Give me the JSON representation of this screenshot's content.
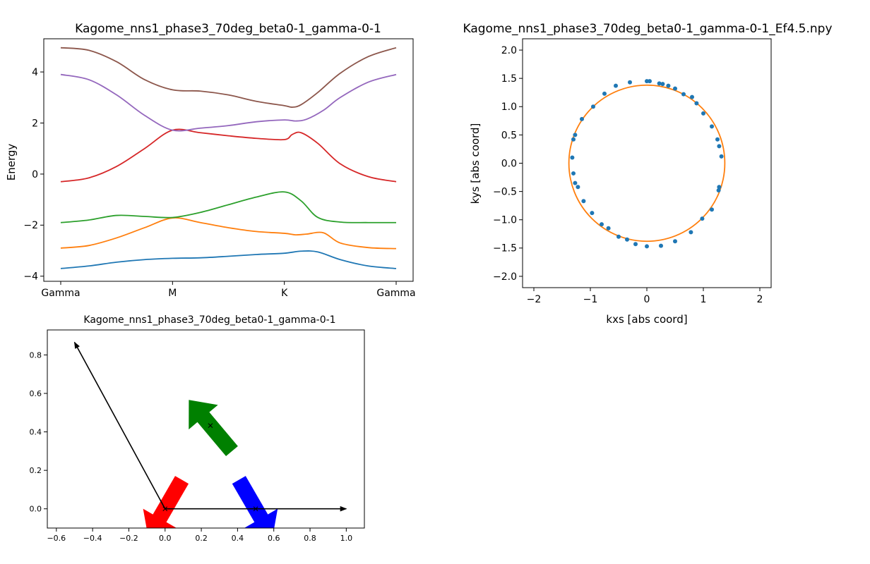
{
  "chart_data": [
    {
      "type": "line",
      "title": "Kagome_nns1_phase3_70deg_beta0-1_gamma-0-1",
      "xlabel": "",
      "ylabel": "Energy",
      "xlim": [
        0,
        3
      ],
      "ylim": [
        -4.2,
        5.3
      ],
      "xticks": [
        0,
        1,
        2,
        3
      ],
      "xtick_labels": [
        "Gamma",
        "M",
        "K",
        "Gamma"
      ],
      "yticks": [
        -4,
        -2,
        0,
        2,
        4
      ],
      "ytick_labels": [
        "−4",
        "−2",
        "0",
        "2",
        "4"
      ],
      "grid": false,
      "series": [
        {
          "color": "#1f77b4",
          "x": [
            0,
            0.25,
            0.5,
            0.75,
            1,
            1.25,
            1.5,
            1.75,
            2,
            2.15,
            2.3,
            2.5,
            2.75,
            3
          ],
          "y": [
            -3.7,
            -3.6,
            -3.45,
            -3.35,
            -3.3,
            -3.28,
            -3.22,
            -3.15,
            -3.1,
            -3.02,
            -3.05,
            -3.35,
            -3.6,
            -3.7
          ]
        },
        {
          "color": "#ff7f0e",
          "x": [
            0,
            0.25,
            0.5,
            0.75,
            1,
            1.25,
            1.5,
            1.75,
            2,
            2.1,
            2.2,
            2.35,
            2.5,
            2.75,
            3
          ],
          "y": [
            -2.9,
            -2.8,
            -2.5,
            -2.1,
            -1.72,
            -1.9,
            -2.1,
            -2.25,
            -2.32,
            -2.38,
            -2.35,
            -2.3,
            -2.7,
            -2.88,
            -2.92
          ]
        },
        {
          "color": "#2ca02c",
          "x": [
            0,
            0.25,
            0.5,
            0.75,
            1,
            1.25,
            1.5,
            1.75,
            2,
            2.15,
            2.3,
            2.5,
            2.75,
            3
          ],
          "y": [
            -1.9,
            -1.8,
            -1.62,
            -1.66,
            -1.7,
            -1.5,
            -1.2,
            -0.9,
            -0.7,
            -1.05,
            -1.7,
            -1.88,
            -1.9,
            -1.9
          ]
        },
        {
          "color": "#d62728",
          "x": [
            0,
            0.25,
            0.5,
            0.75,
            1,
            1.25,
            1.5,
            1.75,
            2,
            2.07,
            2.15,
            2.3,
            2.5,
            2.75,
            3
          ],
          "y": [
            -0.3,
            -0.15,
            0.3,
            1.0,
            1.72,
            1.62,
            1.5,
            1.4,
            1.35,
            1.55,
            1.62,
            1.2,
            0.4,
            -0.1,
            -0.3
          ]
        },
        {
          "color": "#9467bd",
          "x": [
            0,
            0.25,
            0.5,
            0.75,
            1,
            1.25,
            1.5,
            1.75,
            2,
            2.1,
            2.2,
            2.35,
            2.5,
            2.75,
            3
          ],
          "y": [
            3.9,
            3.7,
            3.1,
            2.3,
            1.72,
            1.8,
            1.9,
            2.05,
            2.12,
            2.08,
            2.15,
            2.5,
            3.0,
            3.6,
            3.9
          ]
        },
        {
          "color": "#8c564b",
          "x": [
            0,
            0.25,
            0.5,
            0.75,
            1,
            1.25,
            1.5,
            1.75,
            2,
            2.07,
            2.15,
            2.3,
            2.5,
            2.75,
            3
          ],
          "y": [
            4.95,
            4.85,
            4.4,
            3.7,
            3.3,
            3.25,
            3.1,
            2.85,
            2.68,
            2.62,
            2.72,
            3.2,
            3.95,
            4.6,
            4.95
          ]
        }
      ]
    },
    {
      "type": "scatter",
      "title": "Kagome_nns1_phase3_70deg_beta0-1_gamma-0-1_Ef4.5.npy",
      "xlabel": "kxs [abs coord]",
      "ylabel": "kys [abs coord]",
      "xlim": [
        -2.2,
        2.2
      ],
      "ylim": [
        -2.2,
        2.2
      ],
      "xticks": [
        -2,
        -1,
        0,
        1,
        2
      ],
      "xtick_labels": [
        "−2",
        "−1",
        "0",
        "1",
        "2"
      ],
      "yticks": [
        -2.0,
        -1.5,
        -1.0,
        -0.5,
        0.0,
        0.5,
        1.0,
        1.5,
        2.0
      ],
      "ytick_labels": [
        "−2.0",
        "−1.5",
        "−1.0",
        "−0.5",
        "0.0",
        "0.5",
        "1.0",
        "1.5",
        "2.0"
      ],
      "grid": false,
      "points_color": "#1f77b4",
      "points": [
        [
          0.0,
          1.45
        ],
        [
          0.05,
          1.45
        ],
        [
          -0.3,
          1.43
        ],
        [
          -0.55,
          1.37
        ],
        [
          -0.75,
          1.23
        ],
        [
          -0.95,
          1.0
        ],
        [
          -1.15,
          0.78
        ],
        [
          -1.27,
          0.5
        ],
        [
          -1.3,
          0.42
        ],
        [
          -1.32,
          0.1
        ],
        [
          -1.3,
          -0.18
        ],
        [
          -1.27,
          -0.35
        ],
        [
          -1.22,
          -0.42
        ],
        [
          -1.12,
          -0.67
        ],
        [
          -0.97,
          -0.88
        ],
        [
          -0.8,
          -1.08
        ],
        [
          -0.68,
          -1.15
        ],
        [
          -0.5,
          -1.3
        ],
        [
          -0.35,
          -1.35
        ],
        [
          -0.2,
          -1.43
        ],
        [
          0.0,
          -1.47
        ],
        [
          0.25,
          -1.46
        ],
        [
          0.5,
          -1.38
        ],
        [
          0.78,
          -1.22
        ],
        [
          0.98,
          -0.98
        ],
        [
          1.15,
          -0.82
        ],
        [
          1.27,
          -0.48
        ],
        [
          1.28,
          -0.42
        ],
        [
          1.32,
          0.12
        ],
        [
          1.28,
          0.3
        ],
        [
          1.25,
          0.42
        ],
        [
          1.15,
          0.65
        ],
        [
          1.0,
          0.88
        ],
        [
          0.88,
          1.06
        ],
        [
          0.8,
          1.17
        ],
        [
          0.65,
          1.22
        ],
        [
          0.5,
          1.32
        ],
        [
          0.38,
          1.37
        ],
        [
          0.28,
          1.4
        ],
        [
          0.22,
          1.41
        ]
      ],
      "fit_color": "#ff7f0e",
      "fit_circle": {
        "cx": 0.0,
        "cy": 0.0,
        "r": 1.38
      }
    },
    {
      "type": "scatter",
      "title": "Kagome_nns1_phase3_70deg_beta0-1_gamma-0-1",
      "xlabel": "",
      "ylabel": "",
      "xlim": [
        -0.65,
        1.1
      ],
      "ylim": [
        -0.1,
        0.93
      ],
      "xticks": [
        -0.6,
        -0.4,
        -0.2,
        0.0,
        0.2,
        0.4,
        0.6,
        0.8,
        1.0
      ],
      "xtick_labels": [
        "−0.6",
        "−0.4",
        "−0.2",
        "0.0",
        "0.2",
        "0.4",
        "0.6",
        "0.8",
        "1.0"
      ],
      "yticks": [
        0.0,
        0.2,
        0.4,
        0.6,
        0.8
      ],
      "ytick_labels": [
        "0.0",
        "0.2",
        "0.4",
        "0.6",
        "0.8"
      ],
      "grid": false,
      "lattice_vectors": [
        {
          "from": [
            0,
            0
          ],
          "to": [
            1.0,
            0.0
          ],
          "color": "#000000"
        },
        {
          "from": [
            0,
            0
          ],
          "to": [
            -0.5,
            0.866
          ],
          "color": "#000000"
        }
      ],
      "sites": [
        [
          0,
          0
        ],
        [
          0.5,
          0
        ],
        [
          0.25,
          0.433
        ]
      ],
      "spin_arrows": [
        {
          "center": [
            0.0,
            0.0
          ],
          "angle_deg": 240,
          "color": "#ff0000"
        },
        {
          "center": [
            0.5,
            0.0
          ],
          "angle_deg": 300,
          "color": "#0000ff"
        },
        {
          "center": [
            0.25,
            0.433
          ],
          "angle_deg": 130,
          "color": "#008000"
        }
      ]
    }
  ]
}
